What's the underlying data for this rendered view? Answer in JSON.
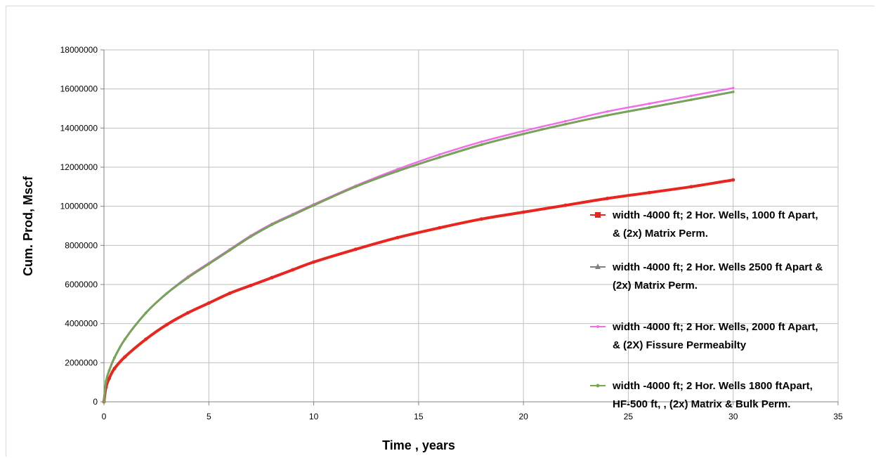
{
  "chart_data": {
    "type": "line",
    "title": "",
    "xlabel": "Time , years",
    "ylabel": "Cum. Prod, Mscf",
    "xlim": [
      0,
      35
    ],
    "ylim": [
      0,
      18000000
    ],
    "xticks": [
      0,
      5,
      10,
      15,
      20,
      25,
      30,
      35
    ],
    "yticks": [
      0,
      2000000,
      4000000,
      6000000,
      8000000,
      10000000,
      12000000,
      14000000,
      16000000,
      18000000
    ],
    "xtick_labels": [
      "0",
      "5",
      "10",
      "15",
      "20",
      "25",
      "30",
      "35"
    ],
    "ytick_labels": [
      "0",
      "2000000",
      "4000000",
      "6000000",
      "8000000",
      "10000000",
      "12000000",
      "14000000",
      "16000000",
      "18000000"
    ],
    "grid": true,
    "legend_position": "right",
    "series": [
      {
        "name": "width -4000 ft; 2 Hor. Wells, 1000 ft Apart, & (2x) Matrix Perm.",
        "legend_lines": [
          "width -4000 ft; 2 Hor. Wells, 1000 ft Apart,",
          "& (2x) Matrix Perm."
        ],
        "color": "#e8251f",
        "marker": "square",
        "x": [
          0,
          0.1,
          0.25,
          0.5,
          1,
          2,
          3,
          4,
          5,
          6,
          7,
          8,
          9,
          10,
          12,
          14,
          16,
          18,
          20,
          22,
          24,
          26,
          28,
          30
        ],
        "y": [
          0,
          750000,
          1200000,
          1700000,
          2300000,
          3200000,
          3950000,
          4550000,
          5050000,
          5550000,
          5950000,
          6350000,
          6750000,
          7150000,
          7800000,
          8400000,
          8900000,
          9350000,
          9700000,
          10050000,
          10400000,
          10700000,
          11000000,
          11350000
        ]
      },
      {
        "name": "width -4000 ft; 2 Hor. Wells 2500 ft Apart & (2x) Matrix Perm.",
        "legend_lines": [
          "width -4000 ft; 2 Hor. Wells 2500 ft Apart &",
          "(2x) Matrix Perm."
        ],
        "color": "#808080",
        "marker": "triangle",
        "x": [
          0,
          0.1,
          0.25,
          0.5,
          1,
          2,
          3,
          4,
          5,
          6,
          7,
          8,
          9,
          10,
          12,
          14,
          16,
          18,
          20,
          22,
          24,
          26,
          28,
          30
        ],
        "y": [
          0,
          1050000,
          1600000,
          2250000,
          3200000,
          4550000,
          5550000,
          6350000,
          7050000,
          7750000,
          8450000,
          9050000,
          9550000,
          10050000,
          11000000,
          11800000,
          12500000,
          13150000,
          13700000,
          14200000,
          14650000,
          15050000,
          15450000,
          15850000
        ]
      },
      {
        "name": "width -4000 ft; 2 Hor. Wells, 2000 ft Apart, & (2X) Fissure Permeabilty",
        "legend_lines": [
          "width -4000 ft; 2 Hor. Wells, 2000 ft Apart,",
          "& (2X) Fissure Permeabilty"
        ],
        "color": "#f06ee6",
        "marker": "x",
        "x": [
          0,
          0.1,
          0.25,
          0.5,
          1,
          2,
          3,
          4,
          5,
          6,
          7,
          8,
          9,
          10,
          12,
          14,
          16,
          18,
          20,
          22,
          24,
          26,
          28,
          30
        ],
        "y": [
          0,
          1050000,
          1600000,
          2250000,
          3200000,
          4550000,
          5550000,
          6400000,
          7100000,
          7800000,
          8500000,
          9100000,
          9600000,
          10100000,
          11050000,
          11900000,
          12650000,
          13300000,
          13850000,
          14350000,
          14850000,
          15250000,
          15650000,
          16050000
        ]
      },
      {
        "name": "width -4000 ft; 2 Hor. Wells 1800 ftApart, HF-500 ft, , (2x) Matrix & Bulk Perm.",
        "legend_lines": [
          "width -4000 ft; 2 Hor. Wells 1800 ftApart,",
          "HF-500 ft, , (2x) Matrix & Bulk Perm."
        ],
        "color": "#70ad47",
        "marker": "dot",
        "x": [
          0,
          0.1,
          0.25,
          0.5,
          1,
          2,
          3,
          4,
          5,
          6,
          7,
          8,
          9,
          10,
          12,
          14,
          16,
          18,
          20,
          22,
          24,
          26,
          28,
          30
        ],
        "y": [
          0,
          1050000,
          1600000,
          2250000,
          3200000,
          4550000,
          5550000,
          6350000,
          7050000,
          7750000,
          8450000,
          9050000,
          9550000,
          10050000,
          11000000,
          11800000,
          12500000,
          13150000,
          13700000,
          14200000,
          14650000,
          15050000,
          15450000,
          15850000
        ]
      }
    ]
  }
}
